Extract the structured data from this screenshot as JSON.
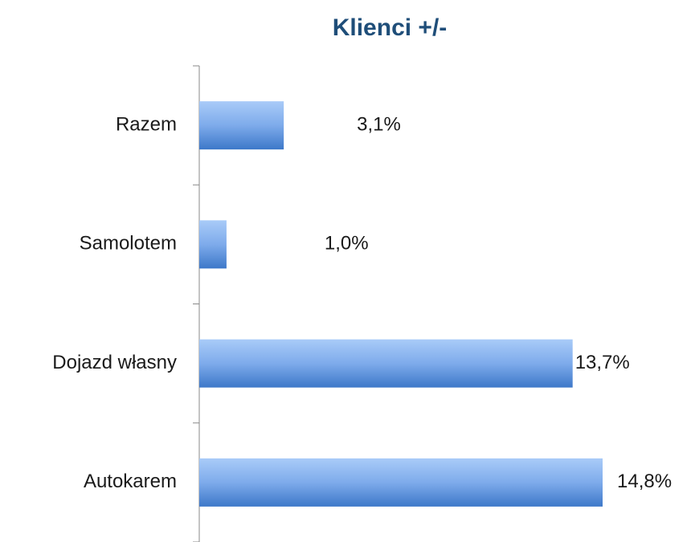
{
  "chart_data": {
    "type": "bar",
    "orientation": "horizontal",
    "title": "Klienci +/-",
    "categories": [
      "Razem",
      "Samolotem",
      "Dojazd własny",
      "Autokarem"
    ],
    "values": [
      3.1,
      1.0,
      13.7,
      14.8
    ],
    "value_labels": [
      "3,1%",
      "1,0%",
      "13,7%",
      "14,8%"
    ],
    "color": "#4f86d6"
  }
}
